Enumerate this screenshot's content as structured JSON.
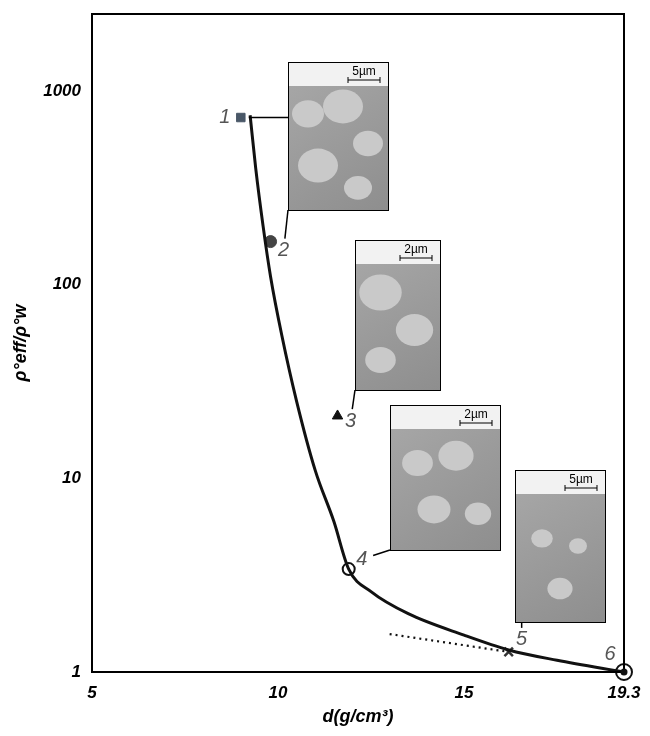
{
  "chart_data": {
    "type": "line",
    "x_label": "d(g/cm³)",
    "y_label": "ρ°eff/ρ°w",
    "xlim": [
      5,
      19.3
    ],
    "xticks": [
      5,
      10,
      15,
      19.3
    ],
    "ylim": [
      1,
      2500
    ],
    "yticks": [
      1,
      10,
      100,
      1000
    ],
    "log": "y",
    "grid": false,
    "series": [
      {
        "type": "line",
        "line_style": "solid",
        "color": "#111111",
        "x": [
          9.25,
          9.4,
          9.6,
          9.8,
          10.1,
          10.5,
          11.0,
          11.5,
          11.9,
          12.5,
          13.5,
          15.0,
          16.2,
          17.5,
          19.3
        ],
        "values": [
          750,
          400,
          200,
          110,
          55,
          25,
          11,
          6,
          3.4,
          2.6,
          2.0,
          1.55,
          1.3,
          1.15,
          1.0
        ]
      },
      {
        "type": "line",
        "line_style": "dotted",
        "color": "#111111",
        "x": [
          13.0,
          16.2
        ],
        "values": [
          1.57,
          1.27
        ]
      },
      {
        "name": "1",
        "type": "scatter",
        "marker": "square",
        "color": "#4a5868",
        "x": [
          9.0
        ],
        "values": [
          730
        ]
      },
      {
        "name": "2",
        "type": "scatter",
        "marker": "circle",
        "color": "#444444",
        "x": [
          9.8
        ],
        "values": [
          167
        ]
      },
      {
        "name": "3",
        "type": "scatter",
        "marker": "triangle",
        "color": "#111111",
        "x": [
          11.6
        ],
        "values": [
          21
        ]
      },
      {
        "name": "4",
        "type": "scatter",
        "marker": "circle_open",
        "color": "#111111",
        "x": [
          11.9
        ],
        "values": [
          3.4
        ]
      },
      {
        "name": "5",
        "type": "scatter",
        "marker": "cross",
        "color": "#333333",
        "x": [
          16.2
        ],
        "values": [
          1.27
        ]
      },
      {
        "name": "6",
        "type": "scatter",
        "marker": "circle_dot",
        "color": "#111111",
        "x": [
          19.3
        ],
        "values": [
          1.0
        ]
      }
    ],
    "insets": [
      {
        "scale_bar": "5µm",
        "points": [
          "1",
          "2"
        ]
      },
      {
        "scale_bar": "2µm",
        "points": [
          "3"
        ]
      },
      {
        "scale_bar": "2µm",
        "points": [
          "4"
        ]
      },
      {
        "scale_bar": "5µm",
        "points": [
          "5"
        ]
      }
    ]
  }
}
